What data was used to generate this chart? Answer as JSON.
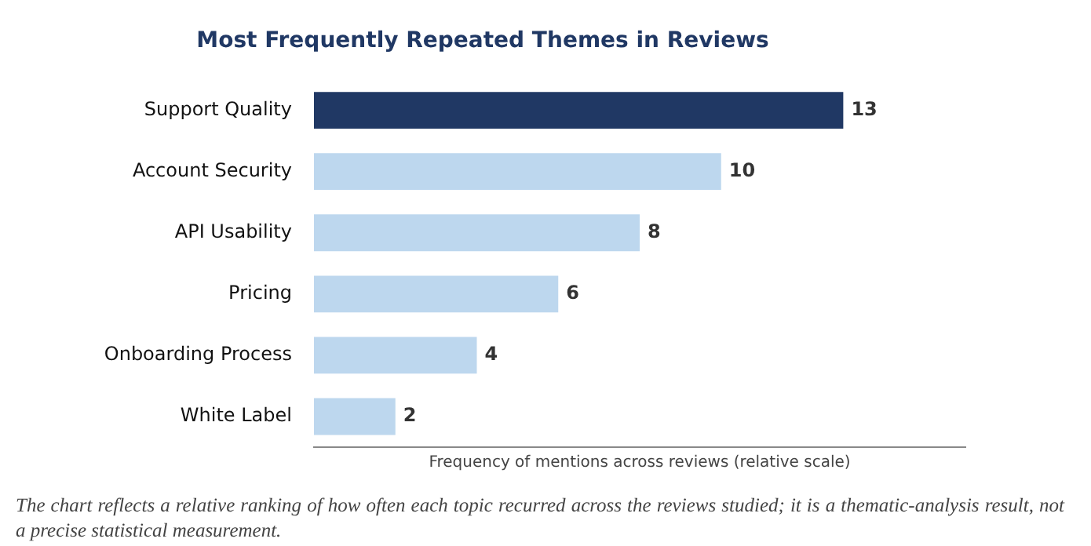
{
  "chart_data": {
    "type": "bar",
    "orientation": "horizontal",
    "title": "Most Frequently Repeated Themes in Reviews",
    "xlabel": "Frequency of mentions across reviews (relative scale)",
    "categories": [
      "Support Quality",
      "Account Security",
      "API Usability",
      "Pricing",
      "Onboarding Process",
      "White Label"
    ],
    "values": [
      13,
      10,
      8,
      6,
      4,
      2
    ],
    "colors": [
      "#203864",
      "#bdd7ee",
      "#bdd7ee",
      "#bdd7ee",
      "#bdd7ee",
      "#bdd7ee"
    ],
    "xlim": [
      0,
      16
    ],
    "tick_labels": "y",
    "legend": false,
    "data_labels": true,
    "annotations": [
      "The chart reflects a relative ranking of how often each topic recurred across the reviews studied; it is a thematic-analysis result, not a precise statistical measurement."
    ]
  }
}
